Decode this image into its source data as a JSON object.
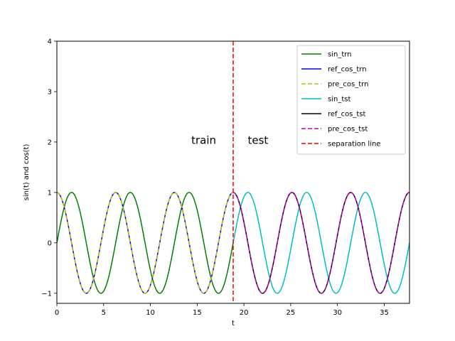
{
  "chart_data": {
    "type": "line",
    "title": "",
    "xlabel": "t",
    "ylabel": "sin(t) and cos(t)",
    "xlim": [
      0,
      37.7
    ],
    "ylim": [
      -1.2,
      4
    ],
    "xticks": [
      0,
      5,
      10,
      15,
      20,
      25,
      30,
      35
    ],
    "yticks": [
      -1,
      0,
      1,
      2,
      3,
      4
    ],
    "grid": false,
    "legend_position": "top-right",
    "train_end": 18.85,
    "series": [
      {
        "name": "sin_trn",
        "func": "sin",
        "range": [
          0,
          18.85
        ],
        "color": "#008000",
        "dash": "solid"
      },
      {
        "name": "ref_cos_trn",
        "func": "cos",
        "range": [
          0,
          18.85
        ],
        "color": "#0000ff",
        "dash": "solid"
      },
      {
        "name": "pre_cos_trn",
        "func": "cos",
        "range": [
          0,
          18.85
        ],
        "color": "#bfbf00",
        "dash": "dashed"
      },
      {
        "name": "sin_tst",
        "func": "sin",
        "range": [
          18.85,
          37.7
        ],
        "color": "#00bfbf",
        "dash": "solid"
      },
      {
        "name": "ref_cos_tst",
        "func": "cos",
        "range": [
          18.85,
          37.7
        ],
        "color": "#000000",
        "dash": "solid"
      },
      {
        "name": "pre_cos_tst",
        "func": "cos",
        "range": [
          18.85,
          37.7
        ],
        "color": "#bf00bf",
        "dash": "dashed"
      },
      {
        "name": "separation line",
        "func": "vline",
        "x": 18.85,
        "color": "#ff0000",
        "dash": "dashed"
      }
    ],
    "annotations": [
      {
        "text": "train",
        "x": 15.7,
        "y": 2.05
      },
      {
        "text": "test",
        "x": 21.5,
        "y": 2.05
      }
    ]
  }
}
